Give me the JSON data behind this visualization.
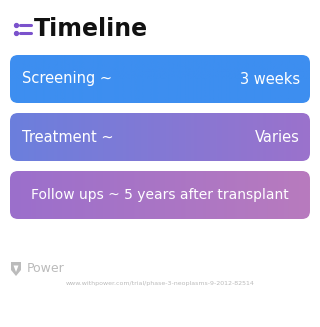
{
  "title": "Timeline",
  "title_fontsize": 17,
  "title_color": "#111111",
  "title_icon_color": "#7B52CC",
  "background_color": "#ffffff",
  "rows": [
    {
      "left_text": "Screening ~",
      "right_text": "3 weeks",
      "color_left": "#3D8EF0",
      "color_right": "#3D8EF0",
      "text_color": "#ffffff",
      "fontsize": 10.5
    },
    {
      "left_text": "Treatment ~",
      "right_text": "Varies",
      "color_left": "#6B7FDD",
      "color_right": "#9B72CC",
      "text_color": "#ffffff",
      "fontsize": 10.5
    },
    {
      "left_text": "Follow ups ~ 5 years after transplant",
      "right_text": null,
      "color_left": "#9B6FCC",
      "color_right": "#B87BBE",
      "text_color": "#ffffff",
      "fontsize": 10
    }
  ],
  "footer_logo_color": "#bbbbbb",
  "footer_text": "Power",
  "footer_fontsize": 9,
  "url_text": "www.withpower.com/trial/phase-3-neoplasms-9-2012-82514",
  "url_color": "#bbbbbb",
  "url_fontsize": 4.5
}
